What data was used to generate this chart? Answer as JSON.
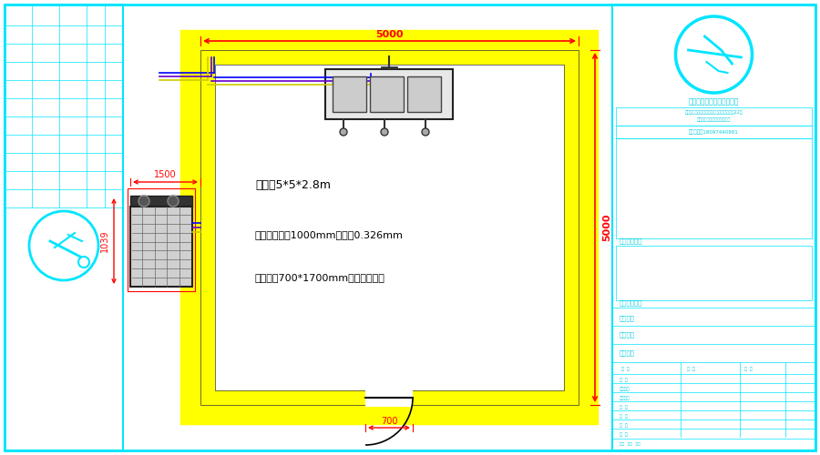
{
  "bg_color": "#ffffff",
  "border_color": "#00e5ff",
  "wall_color": "#ffff00",
  "dim_color": "#ff0000",
  "text_color": "#000000",
  "cyan_color": "#00ccdd",
  "title_text": "尺寸：5*5*2.8m",
  "text2": "冷库板：厚度1000mm。铁皮0.326mm",
  "text3": "冷库门：700*1700mm聚氮酯半埋门",
  "dim_5000_h": "5000",
  "dim_5000_v": "5000",
  "dim_1500": "1500",
  "dim_1039": "1039",
  "dim_700": "700",
  "company_name": "安徽万翔制冷设备有限公司",
  "company_addr1": "地址：安徽省安庆市桐城经济开发区创业园22号",
  "company_addr2": "安徽广播电视桐城分公司旁边",
  "company_tel": "营业电话：18097440991",
  "label_project": "施工工程图纸",
  "label_special": "组织单位特级",
  "label_arch": "建筑名称",
  "label_proj": "工程名称",
  "label_drawing": "图纸名称"
}
